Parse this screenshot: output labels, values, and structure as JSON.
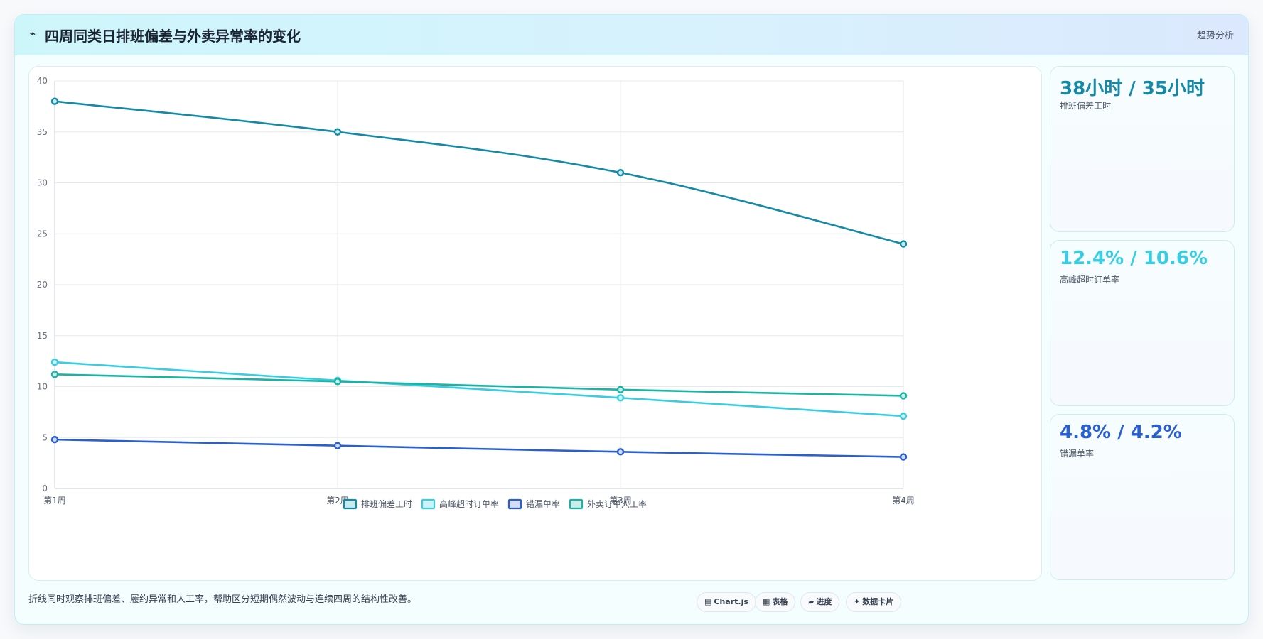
{
  "header": {
    "icon": "⌁",
    "title": "四周同类日排班偏差与外卖异常率的变化",
    "right_label": "趋势分析"
  },
  "chart_data": {
    "type": "line",
    "categories": [
      "第1周",
      "第2周",
      "第3周",
      "第4周"
    ],
    "ylim": [
      0,
      40
    ],
    "yticks": [
      0,
      5,
      10,
      15,
      20,
      25,
      30,
      35,
      40
    ],
    "grid": true,
    "legend_position": "bottom",
    "series": [
      {
        "name": "排班偏差工时",
        "values": [
          38,
          35,
          31,
          24
        ],
        "color": "#148aa6",
        "fill": "#c8ebf2"
      },
      {
        "name": "高峰超时订单率",
        "values": [
          12.4,
          10.6,
          8.9,
          7.1
        ],
        "color": "#38cde0",
        "fill": "#cdf3f8"
      },
      {
        "name": "错漏单率",
        "values": [
          4.8,
          4.2,
          3.6,
          3.1
        ],
        "color": "#2a5fd0",
        "fill": "#d3ddf6"
      },
      {
        "name": "外卖订单人工率",
        "values": [
          11.2,
          10.5,
          9.7,
          9.1
        ],
        "color": "#1ab3a5",
        "fill": "#c9eeea"
      }
    ]
  },
  "stats": [
    {
      "value": "38小时 / 35小时",
      "label": "排班偏差工时",
      "color": "#148aa6"
    },
    {
      "value": "12.4% / 10.6%",
      "label": "高峰超时订单率",
      "color": "#38cde0"
    },
    {
      "value": "4.8% / 4.2%",
      "label": "错漏单率",
      "color": "#2a5fd0"
    }
  ],
  "footer": {
    "note": "折线同时观察排班偏差、履约异常和人工率，帮助区分短期偶然波动与连续四周的结构性改善。",
    "pills": [
      {
        "icon": "▤",
        "label": "Chart.js"
      },
      {
        "icon": "▦",
        "label": "表格"
      },
      {
        "icon": "▰",
        "label": "进度"
      },
      {
        "icon": "✦",
        "label": "数据卡片"
      }
    ]
  }
}
